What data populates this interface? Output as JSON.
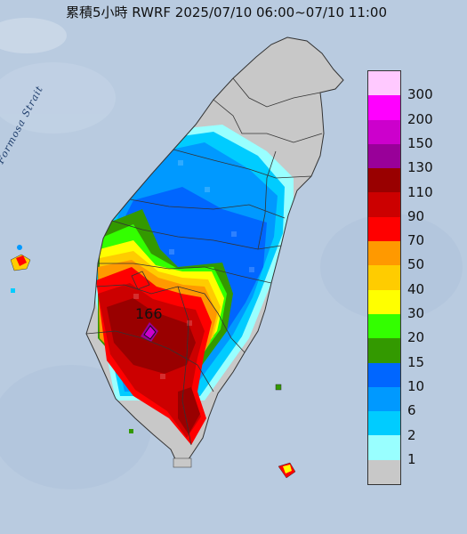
{
  "title": "累積5小時 RWRF 2025/07/10 06:00~07/10 11:00",
  "map_label": "Formosa Strait",
  "peak_value": "166",
  "legend": {
    "levels": [
      {
        "label": "300",
        "color": "#ffc9ff"
      },
      {
        "label": "200",
        "color": "#ff00ff"
      },
      {
        "label": "150",
        "color": "#cc00cc"
      },
      {
        "label": "130",
        "color": "#990099"
      },
      {
        "label": "110",
        "color": "#990000"
      },
      {
        "label": "90",
        "color": "#cc0000"
      },
      {
        "label": "70",
        "color": "#ff0000"
      },
      {
        "label": "50",
        "color": "#ff9900"
      },
      {
        "label": "40",
        "color": "#ffcc00"
      },
      {
        "label": "30",
        "color": "#ffff00"
      },
      {
        "label": "20",
        "color": "#33ff00"
      },
      {
        "label": "15",
        "color": "#339900"
      },
      {
        "label": "10",
        "color": "#0066ff"
      },
      {
        "label": "6",
        "color": "#0099ff"
      },
      {
        "label": "2",
        "color": "#00ccff"
      },
      {
        "label": "1",
        "color": "#99ffff"
      },
      {
        "label": "",
        "color": "#c8c8c8"
      }
    ]
  },
  "colors": {
    "sea": "#b9cbe0",
    "no_rain": "#c8c8c8",
    "boundary": "#333333"
  }
}
